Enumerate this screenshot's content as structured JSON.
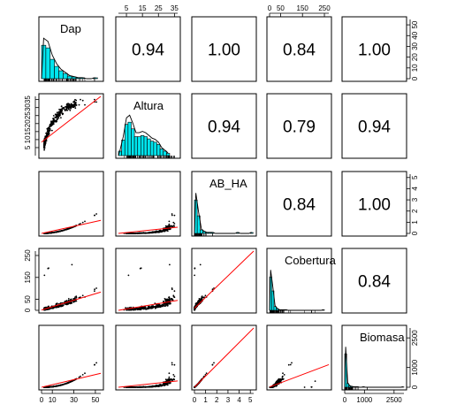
{
  "chart_data": {
    "type": "scatter-matrix",
    "title": "",
    "variables": [
      "Dap",
      "Altura",
      "AB_HA",
      "Cobertura",
      "Biomasa"
    ],
    "correlations": [
      {
        "row": 0,
        "col": 1,
        "label": "0.94"
      },
      {
        "row": 0,
        "col": 2,
        "label": "1.00"
      },
      {
        "row": 0,
        "col": 3,
        "label": "0.84"
      },
      {
        "row": 0,
        "col": 4,
        "label": "1.00"
      },
      {
        "row": 1,
        "col": 2,
        "label": "0.94"
      },
      {
        "row": 1,
        "col": 3,
        "label": "0.79"
      },
      {
        "row": 1,
        "col": 4,
        "label": "0.94"
      },
      {
        "row": 2,
        "col": 3,
        "label": "0.84"
      },
      {
        "row": 2,
        "col": 4,
        "label": "1.00"
      },
      {
        "row": 3,
        "col": 4,
        "label": "0.84"
      }
    ],
    "ranges": {
      "Dap": [
        0,
        55
      ],
      "Altura": [
        0,
        37
      ],
      "AB_HA": [
        0,
        5.3
      ],
      "Cobertura": [
        0,
        270
      ],
      "Biomasa": [
        0,
        3000
      ]
    },
    "ticks": {
      "Dap": [
        "0",
        "10",
        "20",
        "30",
        "40",
        "50"
      ],
      "Altura": [
        "5",
        "10",
        "15",
        "20",
        "25",
        "30",
        "35"
      ],
      "AB_HA": [
        "0",
        "1",
        "2",
        "3",
        "4",
        "5"
      ],
      "Cobertura": [
        "0",
        "50",
        "100",
        "150",
        "200",
        "250"
      ],
      "Biomasa": [
        "0",
        "1000",
        "2000"
      ]
    },
    "top_axis": [
      {
        "var": "Altura",
        "labels": [
          "5",
          "15",
          "25",
          "35"
        ]
      },
      {
        "var": "Cobertura",
        "labels": [
          "0",
          "50",
          "150",
          "250"
        ]
      }
    ],
    "bottom_axis": [
      {
        "var": "Dap",
        "labels": [
          "0",
          "10",
          "30",
          "50"
        ]
      },
      {
        "var": "AB_HA",
        "labels": [
          "0",
          "1",
          "2",
          "3",
          "4",
          "5"
        ]
      },
      {
        "var": "Biomasa",
        "labels": [
          "0",
          "1000",
          "2500"
        ]
      }
    ],
    "left_axis": [
      {
        "var": "Altura",
        "labels": [
          "5",
          "10",
          "15",
          "20",
          "25",
          "30",
          "35"
        ]
      },
      {
        "var": "Cobertura",
        "labels": [
          "0",
          "50",
          "150",
          "250"
        ]
      }
    ],
    "right_axis": [
      {
        "var": "Dap",
        "labels": [
          "0",
          "10",
          "20",
          "30",
          "40",
          "50"
        ]
      },
      {
        "var": "AB_HA",
        "labels": [
          "0",
          "1",
          "2",
          "3",
          "4",
          "5"
        ]
      },
      {
        "var": "Biomasa",
        "labels": [
          "0",
          "1000",
          "2500"
        ]
      }
    ],
    "histograms": {
      "Dap": {
        "bin_width": 4,
        "counts": [
          38,
          35,
          22,
          14,
          9,
          6,
          3,
          2,
          1,
          1,
          0,
          0,
          1
        ]
      },
      "Altura": {
        "bin_width": 2,
        "counts": [
          4,
          14,
          28,
          30,
          24,
          17,
          17,
          18,
          17,
          15,
          13,
          12,
          10,
          6,
          4,
          2
        ]
      },
      "AB_HA": {
        "bin_width": 0.25,
        "counts": [
          38,
          20,
          4,
          2,
          1,
          1,
          1,
          0,
          0,
          0,
          0,
          0,
          0,
          0,
          0,
          1,
          0,
          0,
          0,
          0,
          1
        ]
      },
      "Cobertura": {
        "bin_width": 10,
        "counts": [
          62,
          36,
          7,
          3,
          1,
          1,
          1,
          1,
          0,
          0,
          0,
          0,
          0,
          0,
          0,
          0,
          0,
          0,
          0,
          0,
          0,
          0,
          0,
          0,
          1
        ]
      },
      "Biomasa": {
        "bin_width": 100,
        "counts": [
          90,
          10,
          4,
          2,
          1,
          1,
          1,
          0,
          0,
          1,
          0,
          0,
          0,
          0,
          0,
          0,
          0,
          0,
          0,
          0,
          0,
          0,
          0,
          0,
          0,
          0,
          0,
          0,
          0,
          1
        ]
      }
    },
    "colors": {
      "points": "#000000",
      "fit_line": "#ff0000",
      "histogram_fill": "#00e5ee",
      "density_line": "#000000",
      "frame": "#000000"
    },
    "grid": false
  }
}
